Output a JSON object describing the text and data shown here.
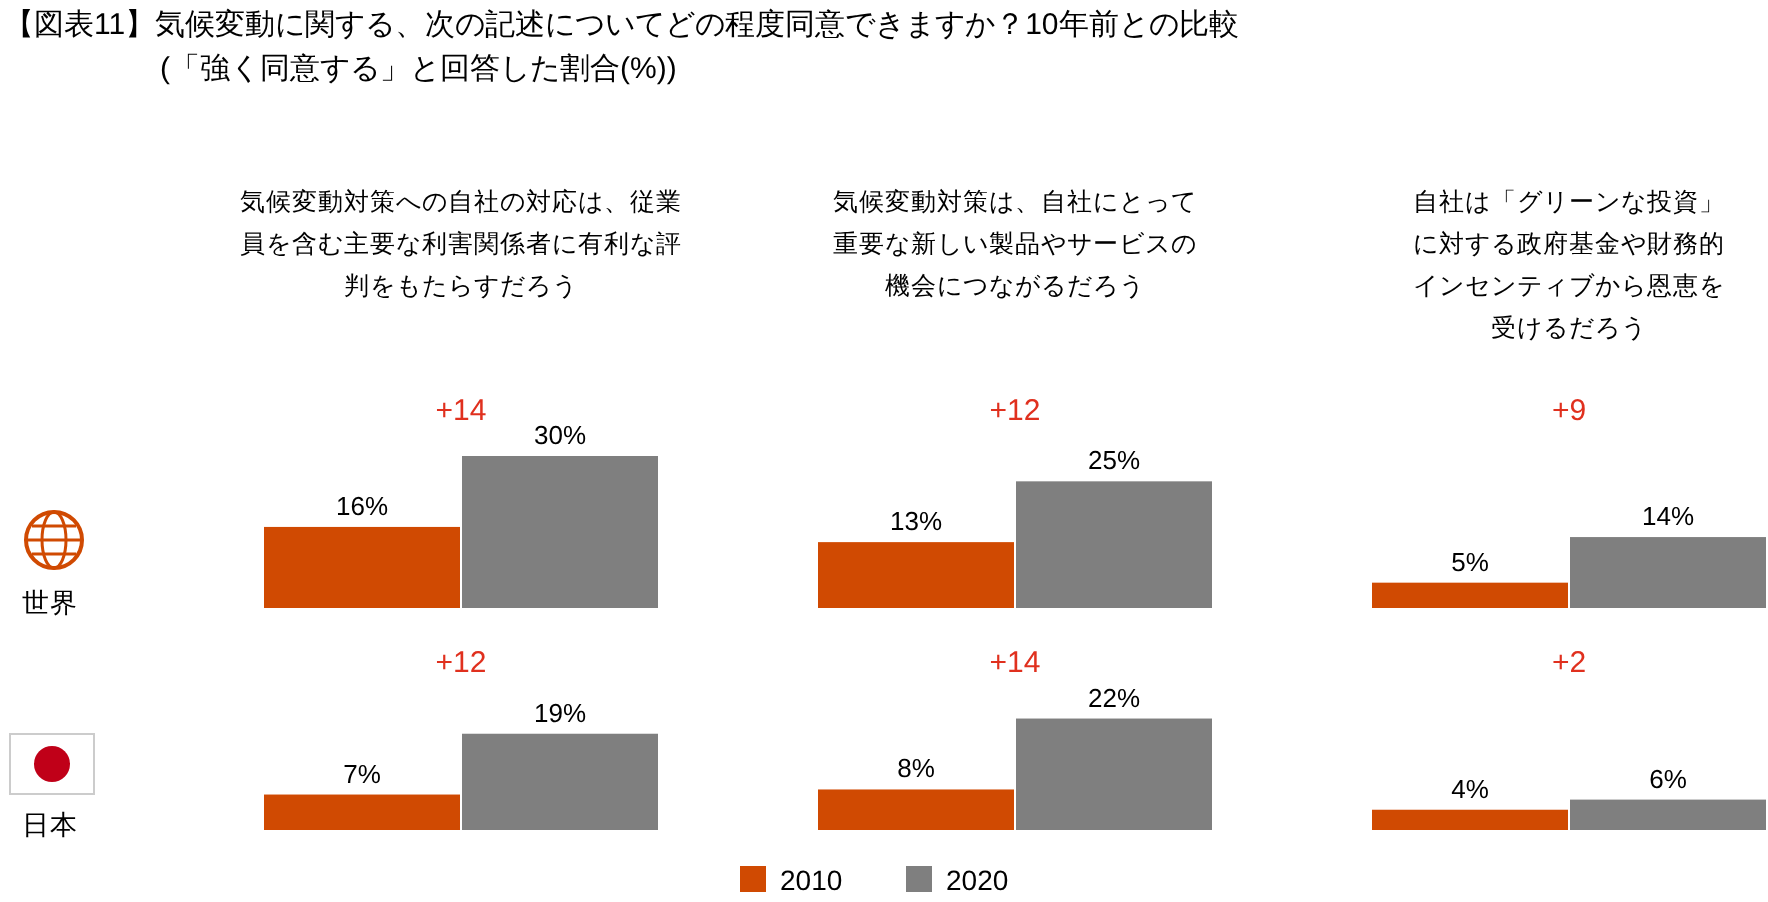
{
  "chart_data": [
    {
      "type": "other",
      "title": "【図表11】気候変動に関する、次の記述についてどの程度同意できますか？10年前との比較",
      "subtitle": "(「強く同意する」と回答した割合(%))"
    },
    {
      "type": "bar",
      "title": "気候変動対策への自社の対応は、従業員を含む主要な利害関係者に有利な評判をもたらすだろう",
      "ylabel": "世界",
      "categories": [
        null
      ],
      "annotations": [
        "+14"
      ],
      "series": [
        {
          "color": "#d04a02",
          "values": [
            16
          ],
          "value_labels": [
            "16%"
          ]
        },
        {
          "color": "#7f7f7f",
          "values": [
            30
          ],
          "value_labels": [
            "30%"
          ]
        }
      ]
    },
    {
      "type": "bar",
      "title": "気候変動対策は、自社にとって重要な新しい製品やサービスの機会につながるだろう",
      "categories": [
        null
      ],
      "annotations": [
        "+12"
      ],
      "series": [
        {
          "color": "#d04a02",
          "values": [
            13
          ],
          "value_labels": [
            "13%"
          ]
        },
        {
          "color": "#7f7f7f",
          "values": [
            25
          ],
          "value_labels": [
            "25%"
          ]
        }
      ]
    },
    {
      "type": "bar",
      "title": "自社は「グリーンな投資」に対する政府基金や財務的インセンティブから恩恵を受けるだろう",
      "categories": [
        null
      ],
      "annotations": [
        "+9"
      ],
      "series": [
        {
          "color": "#d04a02",
          "values": [
            5
          ],
          "value_labels": [
            "5%"
          ]
        },
        {
          "color": "#7f7f7f",
          "values": [
            14
          ],
          "value_labels": [
            "14%"
          ]
        }
      ]
    },
    {
      "type": "bar",
      "ylabel": "日本",
      "categories": [
        null
      ],
      "annotations": [
        "+12"
      ],
      "series": [
        {
          "color": "#d04a02",
          "values": [
            7
          ],
          "value_labels": [
            "7%"
          ]
        },
        {
          "color": "#7f7f7f",
          "values": [
            19
          ],
          "value_labels": [
            "19%"
          ]
        }
      ]
    },
    {
      "type": "bar",
      "categories": [
        null
      ],
      "annotations": [
        "+14"
      ],
      "legend": "bottom",
      "series": [
        {
          "name": "2010",
          "color": "#d04a02",
          "values": [
            8
          ],
          "value_labels": [
            "8%"
          ]
        },
        {
          "name": "2020",
          "color": "#7f7f7f",
          "values": [
            22
          ],
          "value_labels": [
            "22%"
          ]
        }
      ]
    },
    {
      "type": "bar",
      "categories": [
        null
      ],
      "annotations": [
        "+2"
      ],
      "series": [
        {
          "color": "#d04a02",
          "values": [
            4
          ],
          "value_labels": [
            "4%"
          ]
        },
        {
          "color": "#7f7f7f",
          "values": [
            6
          ],
          "value_labels": [
            "6%"
          ]
        }
      ]
    }
  ]
}
